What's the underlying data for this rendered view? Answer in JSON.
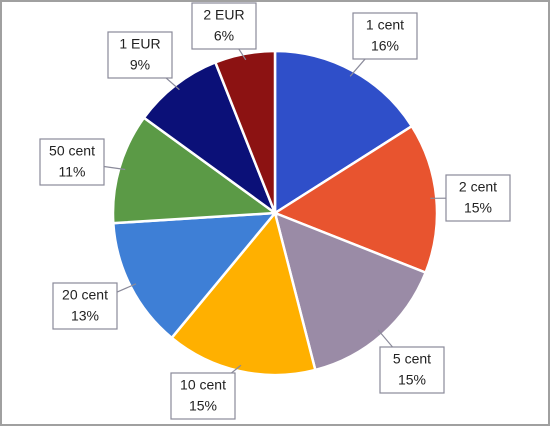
{
  "chart_data": {
    "type": "pie",
    "categories": [
      "1 cent",
      "2 cent",
      "5 cent",
      "10 cent",
      "20 cent",
      "50 cent",
      "1 EUR",
      "2 EUR"
    ],
    "values": [
      16,
      15,
      15,
      15,
      13,
      11,
      9,
      6
    ],
    "value_labels": [
      "16%",
      "15%",
      "15%",
      "15%",
      "13%",
      "11%",
      "9%",
      "6%"
    ],
    "colors": [
      "#2f4fc9",
      "#e8542f",
      "#9a8ba6",
      "#ffb000",
      "#3e7fd6",
      "#5b9a46",
      "#0b1078",
      "#8c1212"
    ]
  }
}
